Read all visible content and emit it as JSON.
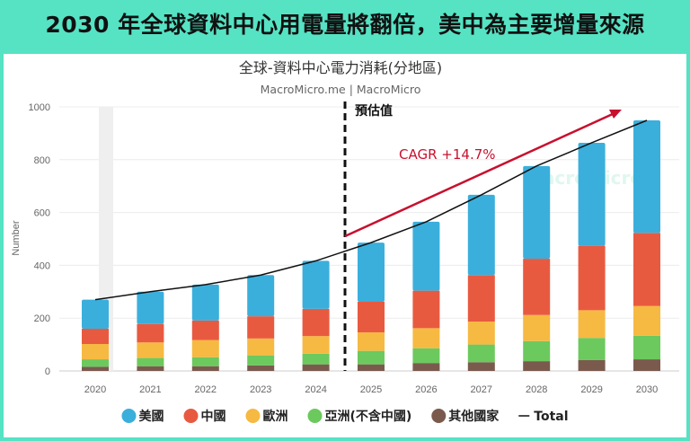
{
  "headline": "2030 年全球資料中心用電量將翻倍，美中為主要增量來源",
  "chart_data": {
    "type": "bar",
    "stacked": true,
    "title": "全球-資料中心電力消耗(分地區)",
    "subtitle": "MacroMicro.me | MacroMicro",
    "ylabel": "Number",
    "xlabel": "",
    "ylim": [
      0,
      1000
    ],
    "yticks": [
      0,
      200,
      400,
      600,
      800,
      1000
    ],
    "grid": true,
    "legend": "bottom",
    "categories": [
      "2020",
      "2021",
      "2022",
      "2023",
      "2024",
      "2025",
      "2026",
      "2027",
      "2028",
      "2029",
      "2030"
    ],
    "series": [
      {
        "name": "其他國家",
        "color": "#7b5a4e",
        "values": [
          16,
          18,
          18,
          21,
          25,
          25,
          30,
          33,
          37,
          41,
          44
        ]
      },
      {
        "name": "亞洲(不含中國)",
        "color": "#6cc95e",
        "values": [
          28,
          31,
          34,
          38,
          40,
          51,
          56,
          67,
          76,
          84,
          89
        ]
      },
      {
        "name": "歐洲",
        "color": "#f6b942",
        "values": [
          58,
          59,
          65,
          64,
          67,
          70,
          76,
          87,
          99,
          105,
          113
        ]
      },
      {
        "name": "中國",
        "color": "#e85a40",
        "values": [
          58,
          70,
          74,
          84,
          103,
          116,
          142,
          176,
          213,
          244,
          277
        ]
      },
      {
        "name": "美國",
        "color": "#3aafdc",
        "values": [
          110,
          122,
          136,
          156,
          182,
          224,
          261,
          304,
          351,
          390,
          426
        ]
      }
    ],
    "line": {
      "name": "Total",
      "color": "#111111",
      "values": [
        270,
        300,
        327,
        363,
        417,
        486,
        565,
        667,
        776,
        864,
        949
      ]
    },
    "legend_order": [
      "美國",
      "中國",
      "歐洲",
      "亞洲(不含中國)",
      "其他國家",
      "Total"
    ],
    "annotations": {
      "forecast_label": "預估值",
      "forecast_start": "2025",
      "cagr_label": "CAGR +14.7%",
      "cagr_color": "#c8102e",
      "watermark": "MacroMicro"
    }
  }
}
